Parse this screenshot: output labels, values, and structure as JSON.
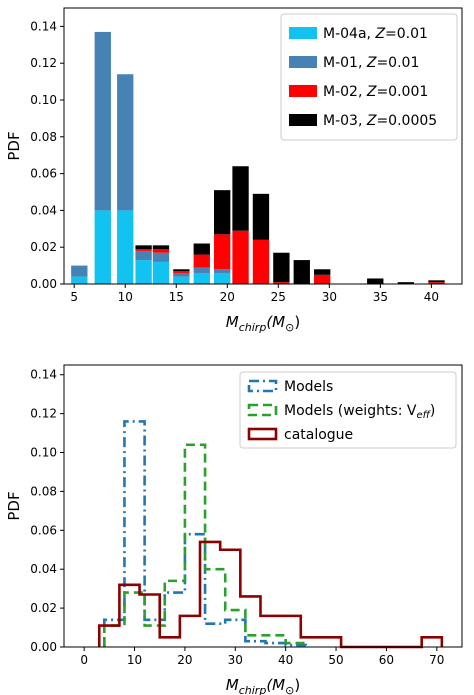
{
  "chart_data": [
    {
      "type": "bar",
      "stacked": true,
      "xlabel_parts": [
        "M",
        "chirp",
        "(M",
        "⊙",
        ")"
      ],
      "ylabel": "PDF",
      "xlim": [
        4.0,
        43.0
      ],
      "ylim": [
        0.0,
        0.15
      ],
      "xticks": [
        5,
        10,
        15,
        20,
        25,
        30,
        35,
        40
      ],
      "yticks": [
        0.0,
        0.02,
        0.04,
        0.06,
        0.08,
        0.1,
        0.12,
        0.14
      ],
      "ytick_labels": [
        "0.00",
        "0.02",
        "0.04",
        "0.06",
        "0.08",
        "0.10",
        "0.12",
        "0.14"
      ],
      "bar_width": 1.6,
      "x": [
        5.5,
        7.8,
        10.0,
        11.8,
        13.5,
        15.5,
        17.5,
        19.5,
        21.3,
        23.3,
        25.3,
        27.3,
        29.3,
        31.2,
        34.5,
        37.5,
        40.5
      ],
      "legend_position": "top-right",
      "series": [
        {
          "name": "M-04a, ",
          "name_var": "Z",
          "name_val": "=0.01",
          "color": "#12c2f0",
          "values": [
            0.004,
            0.04,
            0.04,
            0.013,
            0.012,
            0.004,
            0.006,
            0.006,
            0.0,
            0.0,
            0.0,
            0.0,
            0.0,
            0.0,
            0.0,
            0.0,
            0.0
          ]
        },
        {
          "name": "M-01, ",
          "name_var": "Z",
          "name_val": "=0.01",
          "color": "#4682b4",
          "values": [
            0.006,
            0.097,
            0.074,
            0.005,
            0.005,
            0.002,
            0.003,
            0.002,
            0.0,
            0.0,
            0.0,
            0.0,
            0.0,
            0.0,
            0.0,
            0.0,
            0.0
          ]
        },
        {
          "name": "M-02, ",
          "name_var": "Z",
          "name_val": "=0.001",
          "color": "#ff0000",
          "values": [
            0.0,
            0.0,
            0.0,
            0.001,
            0.002,
            0.001,
            0.007,
            0.019,
            0.029,
            0.024,
            0.001,
            0.0,
            0.005,
            0.0,
            0.0,
            0.0,
            0.001
          ]
        },
        {
          "name": "M-03, ",
          "name_var": "Z",
          "name_val": "=0.0005",
          "color": "#000000",
          "values": [
            0.0,
            0.0,
            0.0,
            0.002,
            0.002,
            0.001,
            0.006,
            0.024,
            0.035,
            0.025,
            0.016,
            0.013,
            0.003,
            0.0,
            0.003,
            0.001,
            0.001
          ]
        }
      ]
    },
    {
      "type": "histogram-step",
      "xlabel_parts": [
        "M",
        "chirp",
        "(M",
        "⊙",
        ")"
      ],
      "ylabel": "PDF",
      "xlim": [
        -4.0,
        75.0
      ],
      "ylim": [
        0.0,
        0.145
      ],
      "xticks": [
        0,
        10,
        20,
        30,
        40,
        50,
        60,
        70
      ],
      "yticks": [
        0.0,
        0.02,
        0.04,
        0.06,
        0.08,
        0.1,
        0.12,
        0.14
      ],
      "ytick_labels": [
        "0.00",
        "0.02",
        "0.04",
        "0.06",
        "0.08",
        "0.10",
        "0.12",
        "0.14"
      ],
      "legend_position": "top-right",
      "series": [
        {
          "name": "Models",
          "color": "#1f77b4",
          "dash": "dashdot",
          "edges": [
            4,
            8,
            12,
            16,
            20,
            24,
            28,
            32,
            36,
            40,
            44
          ],
          "values": [
            0.014,
            0.116,
            0.014,
            0.028,
            0.058,
            0.012,
            0.014,
            0.003,
            0.002,
            0.001
          ]
        },
        {
          "name": "Models (weights: V",
          "name_sub": "eff",
          "name_close": ")",
          "color": "#2ca02c",
          "dash": "dashed",
          "edges": [
            4,
            8,
            12,
            16,
            20,
            24,
            28,
            32,
            36,
            40,
            44
          ],
          "values": [
            0.011,
            0.028,
            0.011,
            0.034,
            0.104,
            0.04,
            0.019,
            0.006,
            0.006,
            0.002
          ]
        },
        {
          "name": "catalogue",
          "color": "#8b0000",
          "dash": "solid",
          "edges": [
            3,
            7,
            11,
            15,
            19,
            23,
            27,
            31,
            35,
            43,
            51,
            59,
            67,
            71
          ],
          "values": [
            0.011,
            0.032,
            0.027,
            0.005,
            0.016,
            0.054,
            0.05,
            0.026,
            0.016,
            0.005,
            0.0,
            0.0,
            0.005
          ]
        }
      ]
    }
  ]
}
